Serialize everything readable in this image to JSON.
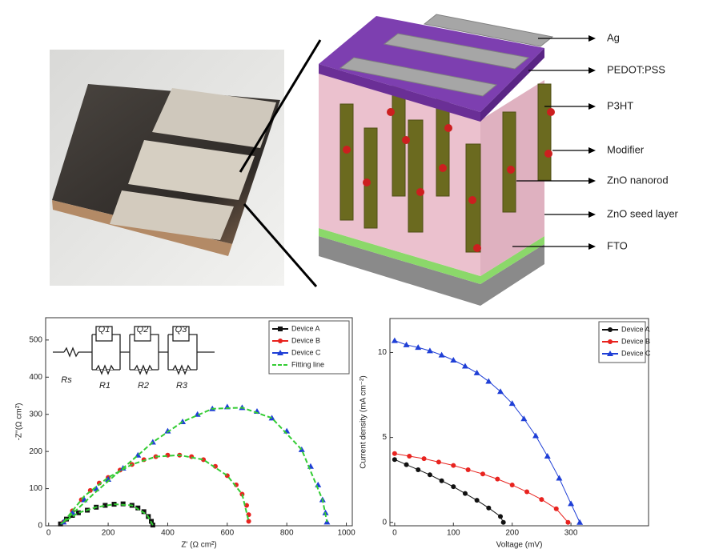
{
  "diagram": {
    "labels": [
      "Ag",
      "PEDOT:PSS",
      "P3HT",
      "Modifier",
      "ZnO nanorod",
      "ZnO seed layer",
      "FTO"
    ]
  },
  "chart_data": [
    {
      "type": "scatter",
      "xlabel": "Z' (Ω cm²)",
      "ylabel": "-Z''(Ω cm²)",
      "xlim": [
        -10,
        1020
      ],
      "ylim": [
        0,
        560
      ],
      "xticks": [
        0,
        200,
        400,
        600,
        800,
        1000
      ],
      "yticks": [
        0,
        100,
        200,
        300,
        400,
        500
      ],
      "legend": "upper right",
      "annotations": [
        "Q1",
        "Q2",
        "Q3",
        "Rs",
        "R1",
        "R2",
        "R3"
      ],
      "series": [
        {
          "name": "Device A",
          "color": "#111111",
          "marker": "square",
          "x": [
            40,
            60,
            80,
            100,
            130,
            160,
            190,
            220,
            250,
            280,
            300,
            320,
            335,
            345,
            350
          ],
          "values": [
            5,
            18,
            28,
            35,
            42,
            50,
            55,
            58,
            59,
            55,
            48,
            38,
            25,
            12,
            2
          ]
        },
        {
          "name": "Device B",
          "color": "#e8231f",
          "marker": "circle",
          "x": [
            50,
            80,
            110,
            140,
            170,
            200,
            240,
            280,
            320,
            360,
            400,
            440,
            480,
            520,
            560,
            600,
            630,
            650,
            665,
            672,
            672
          ],
          "values": [
            10,
            40,
            70,
            95,
            115,
            130,
            150,
            165,
            178,
            186,
            190,
            190,
            186,
            178,
            160,
            135,
            110,
            85,
            55,
            30,
            12
          ]
        },
        {
          "name": "Device C",
          "color": "#1f3fd6",
          "marker": "triangle",
          "x": [
            50,
            80,
            120,
            160,
            200,
            250,
            300,
            350,
            400,
            450,
            500,
            550,
            600,
            650,
            700,
            750,
            800,
            850,
            880,
            905,
            920,
            930,
            935
          ],
          "values": [
            10,
            35,
            70,
            100,
            125,
            155,
            190,
            225,
            255,
            280,
            300,
            315,
            320,
            318,
            308,
            290,
            255,
            205,
            160,
            110,
            70,
            35,
            10
          ]
        },
        {
          "name": "Fitting line",
          "color": "#33cc33",
          "marker": "dashed-line",
          "x": [
            40,
            100,
            160,
            220,
            280,
            330,
            350,
            null,
            50,
            120,
            200,
            280,
            360,
            440,
            520,
            600,
            650,
            672,
            null,
            50,
            150,
            250,
            350,
            450,
            550,
            650,
            750,
            850,
            920,
            935
          ],
          "values": [
            5,
            35,
            50,
            58,
            55,
            30,
            2,
            null,
            10,
            80,
            130,
            165,
            186,
            190,
            178,
            135,
            85,
            12,
            null,
            10,
            85,
            155,
            225,
            280,
            315,
            318,
            290,
            205,
            70,
            10
          ]
        }
      ]
    },
    {
      "type": "line",
      "xlabel": "Voltage (mV)",
      "ylabel": "Current density (mA cm⁻²)",
      "xlim": [
        -8,
        432
      ],
      "ylim": [
        -0.2,
        12
      ],
      "xticks": [
        0,
        100,
        200,
        300
      ],
      "yticks": [
        0,
        5,
        10
      ],
      "legend": "upper right",
      "series": [
        {
          "name": "Device A",
          "color": "#111111",
          "marker": "circle",
          "x": [
            0,
            20,
            40,
            60,
            80,
            100,
            120,
            140,
            160,
            180,
            185
          ],
          "values": [
            3.7,
            3.4,
            3.1,
            2.8,
            2.45,
            2.1,
            1.7,
            1.3,
            0.85,
            0.35,
            0
          ]
        },
        {
          "name": "Device B",
          "color": "#e8231f",
          "marker": "circle",
          "x": [
            0,
            25,
            50,
            75,
            100,
            125,
            150,
            175,
            200,
            225,
            250,
            275,
            295
          ],
          "values": [
            4.05,
            3.9,
            3.75,
            3.55,
            3.35,
            3.1,
            2.85,
            2.55,
            2.2,
            1.8,
            1.35,
            0.8,
            0
          ]
        },
        {
          "name": "Device C",
          "color": "#1f3fd6",
          "marker": "triangle",
          "x": [
            0,
            20,
            40,
            60,
            80,
            100,
            120,
            140,
            160,
            180,
            200,
            220,
            240,
            260,
            280,
            300,
            315
          ],
          "values": [
            10.7,
            10.45,
            10.3,
            10.1,
            9.85,
            9.55,
            9.2,
            8.8,
            8.3,
            7.7,
            7.0,
            6.1,
            5.1,
            3.9,
            2.6,
            1.1,
            0
          ]
        }
      ]
    }
  ]
}
